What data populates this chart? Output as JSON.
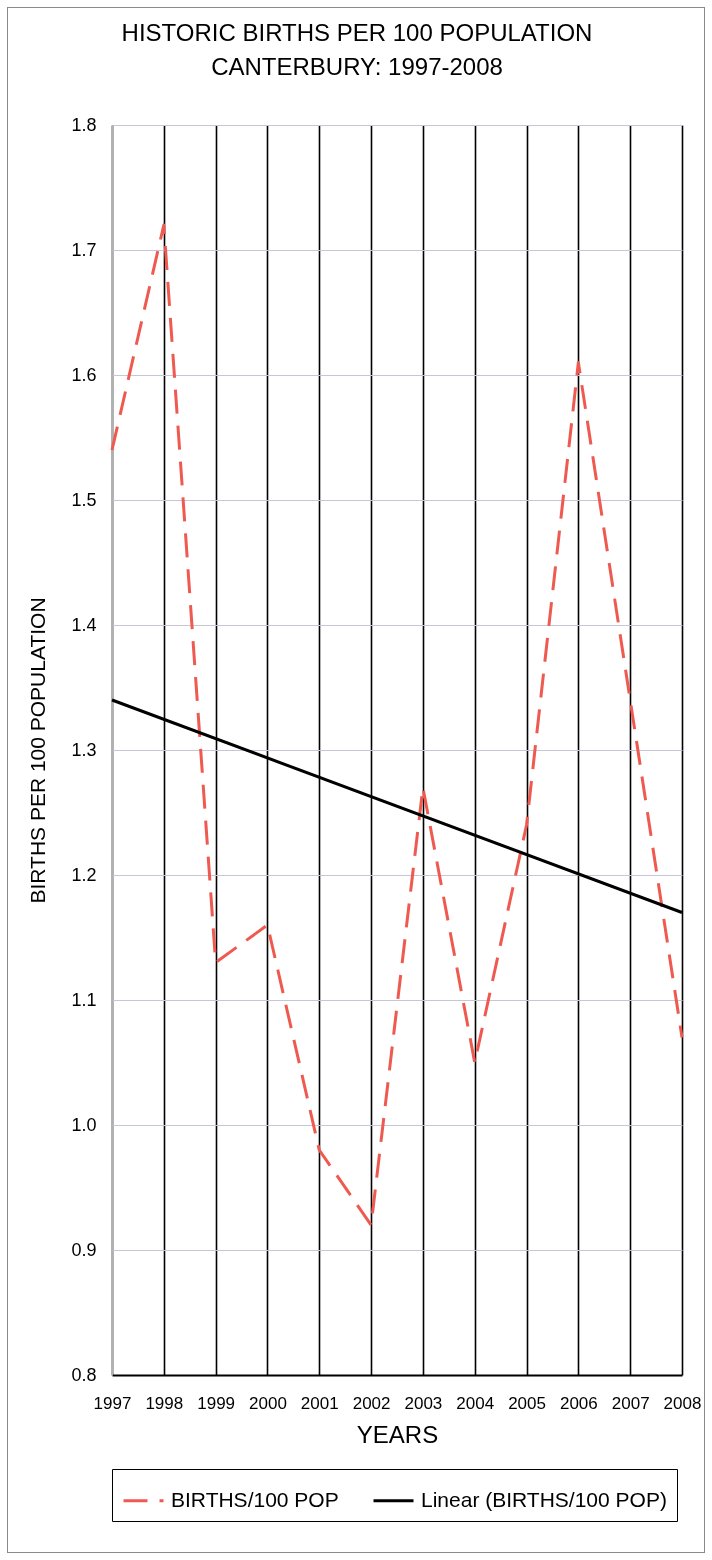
{
  "chart_data": {
    "type": "line",
    "title": "HISTORIC BIRTHS PER 100 POPULATION",
    "subtitle": "CANTERBURY: 1997-2008",
    "xlabel": "YEARS",
    "ylabel": "BIRTHS PER 100 POPULATION",
    "x": [
      1997,
      1998,
      1999,
      2000,
      2001,
      2002,
      2003,
      2004,
      2005,
      2006,
      2007,
      2008
    ],
    "series": [
      {
        "name": "BIRTHS/100 POP",
        "color": "#ef5a50",
        "line_style": "dashed",
        "values": [
          1.54,
          1.72,
          1.13,
          1.16,
          0.98,
          0.92,
          1.27,
          1.05,
          1.24,
          1.61,
          1.34,
          1.07
        ]
      },
      {
        "name": "Linear (BIRTHS/100 POP)",
        "type": "line",
        "color": "#000000",
        "x": [
          1997,
          2008
        ],
        "values": [
          1.34,
          1.17
        ]
      }
    ],
    "xlim": [
      1997,
      2008
    ],
    "xticks": [
      1997,
      1998,
      1999,
      2000,
      2001,
      2002,
      2003,
      2004,
      2005,
      2006,
      2007,
      2008
    ],
    "ylim": [
      0.8,
      1.8
    ],
    "yticks": [
      0.8,
      0.9,
      {
        "value": 1,
        "label": "1.0"
      },
      1.1,
      1.2,
      1.3,
      1.4,
      1.5,
      1.6,
      1.7,
      1.8
    ],
    "grid": true,
    "legend": "bottom"
  }
}
